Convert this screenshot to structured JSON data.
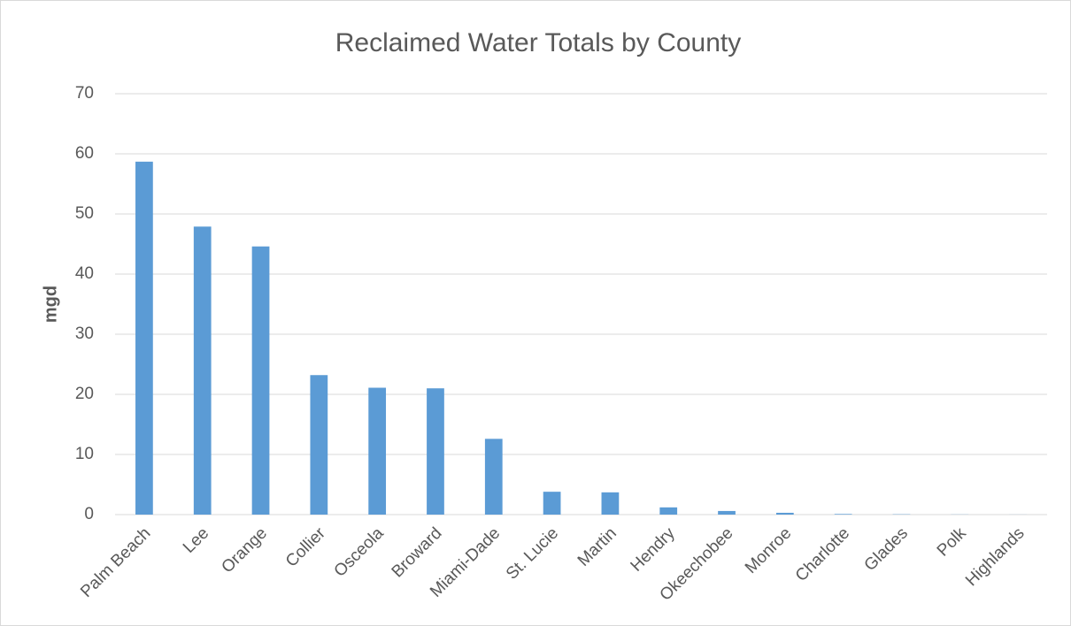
{
  "chart_data": {
    "type": "bar",
    "title": "Reclaimed Water Totals by County",
    "y_label": "mgd",
    "categories": [
      "Palm Beach",
      "Lee",
      "Orange",
      "Collier",
      "Osceola",
      "Broward",
      "Miami-Dade",
      "St. Lucie",
      "Martin",
      "Hendry",
      "Okeechobee",
      "Monroe",
      "Charlotte",
      "Glades",
      "Polk",
      "Highlands"
    ],
    "values": [
      58.7,
      47.9,
      44.6,
      23.2,
      21.1,
      21.0,
      12.6,
      3.8,
      3.7,
      1.2,
      0.6,
      0.3,
      0.1,
      0.05,
      0.02,
      0.01
    ],
    "color": "#5b9bd5",
    "ylim": [
      0,
      70
    ],
    "yticks": [
      0,
      10,
      20,
      30,
      40,
      50,
      60,
      70
    ],
    "grid": true
  }
}
